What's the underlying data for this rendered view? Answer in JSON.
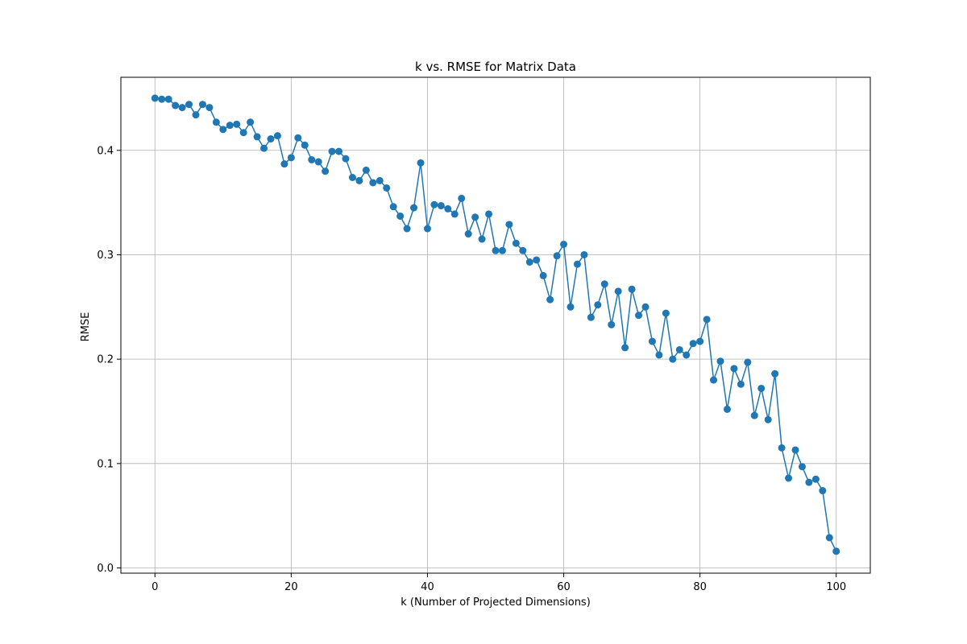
{
  "chart_data": {
    "type": "line",
    "title": "k vs. RMSE for Matrix Data",
    "xlabel": "k (Number of Projected Dimensions)",
    "ylabel": "RMSE",
    "xlim": [
      -5,
      105
    ],
    "ylim": [
      -0.005,
      0.47
    ],
    "xticks": [
      0,
      20,
      40,
      60,
      80,
      100
    ],
    "yticks": [
      0.0,
      0.1,
      0.2,
      0.3,
      0.4
    ],
    "xtick_labels": [
      "0",
      "20",
      "40",
      "60",
      "80",
      "100"
    ],
    "ytick_labels": [
      "0.0",
      "0.1",
      "0.2",
      "0.3",
      "0.4"
    ],
    "grid": true,
    "markers": true,
    "color": "#1f77b4",
    "series": [
      {
        "x": [
          0,
          1,
          2,
          3,
          4,
          5,
          6,
          7,
          8,
          9,
          10,
          11,
          12,
          13,
          14,
          15,
          16,
          17,
          18,
          19,
          20,
          21,
          22,
          23,
          24,
          25,
          26,
          27,
          28,
          29,
          30,
          31,
          32,
          33,
          34,
          35,
          36,
          37,
          38,
          39,
          40,
          41,
          42,
          43,
          44,
          45,
          46,
          47,
          48,
          49,
          50,
          51,
          52,
          53,
          54,
          55,
          56,
          57,
          58,
          59,
          60,
          61,
          62,
          63,
          64,
          65,
          66,
          67,
          68,
          69,
          70,
          71,
          72,
          73,
          74,
          75,
          76,
          77,
          78,
          79,
          80,
          81,
          82,
          83,
          84,
          85,
          86,
          87,
          88,
          89,
          90,
          91,
          92,
          93,
          94,
          95,
          96,
          97,
          98,
          99,
          100
        ],
        "values": [
          0.45,
          0.449,
          0.449,
          0.443,
          0.441,
          0.444,
          0.434,
          0.444,
          0.441,
          0.427,
          0.42,
          0.424,
          0.425,
          0.417,
          0.427,
          0.413,
          0.402,
          0.411,
          0.414,
          0.387,
          0.393,
          0.412,
          0.405,
          0.391,
          0.389,
          0.38,
          0.399,
          0.399,
          0.392,
          0.374,
          0.371,
          0.381,
          0.369,
          0.371,
          0.364,
          0.346,
          0.337,
          0.325,
          0.345,
          0.388,
          0.325,
          0.348,
          0.347,
          0.344,
          0.339,
          0.354,
          0.32,
          0.336,
          0.315,
          0.339,
          0.304,
          0.304,
          0.329,
          0.311,
          0.304,
          0.293,
          0.295,
          0.28,
          0.257,
          0.299,
          0.31,
          0.25,
          0.291,
          0.3,
          0.24,
          0.252,
          0.272,
          0.233,
          0.265,
          0.211,
          0.267,
          0.242,
          0.25,
          0.217,
          0.204,
          0.244,
          0.2,
          0.209,
          0.204,
          0.215,
          0.217,
          0.238,
          0.18,
          0.198,
          0.152,
          0.191,
          0.176,
          0.197,
          0.146,
          0.172,
          0.142,
          0.186,
          0.115,
          0.086,
          0.113,
          0.097,
          0.082,
          0.085,
          0.074,
          0.029,
          0.016
        ]
      }
    ]
  }
}
